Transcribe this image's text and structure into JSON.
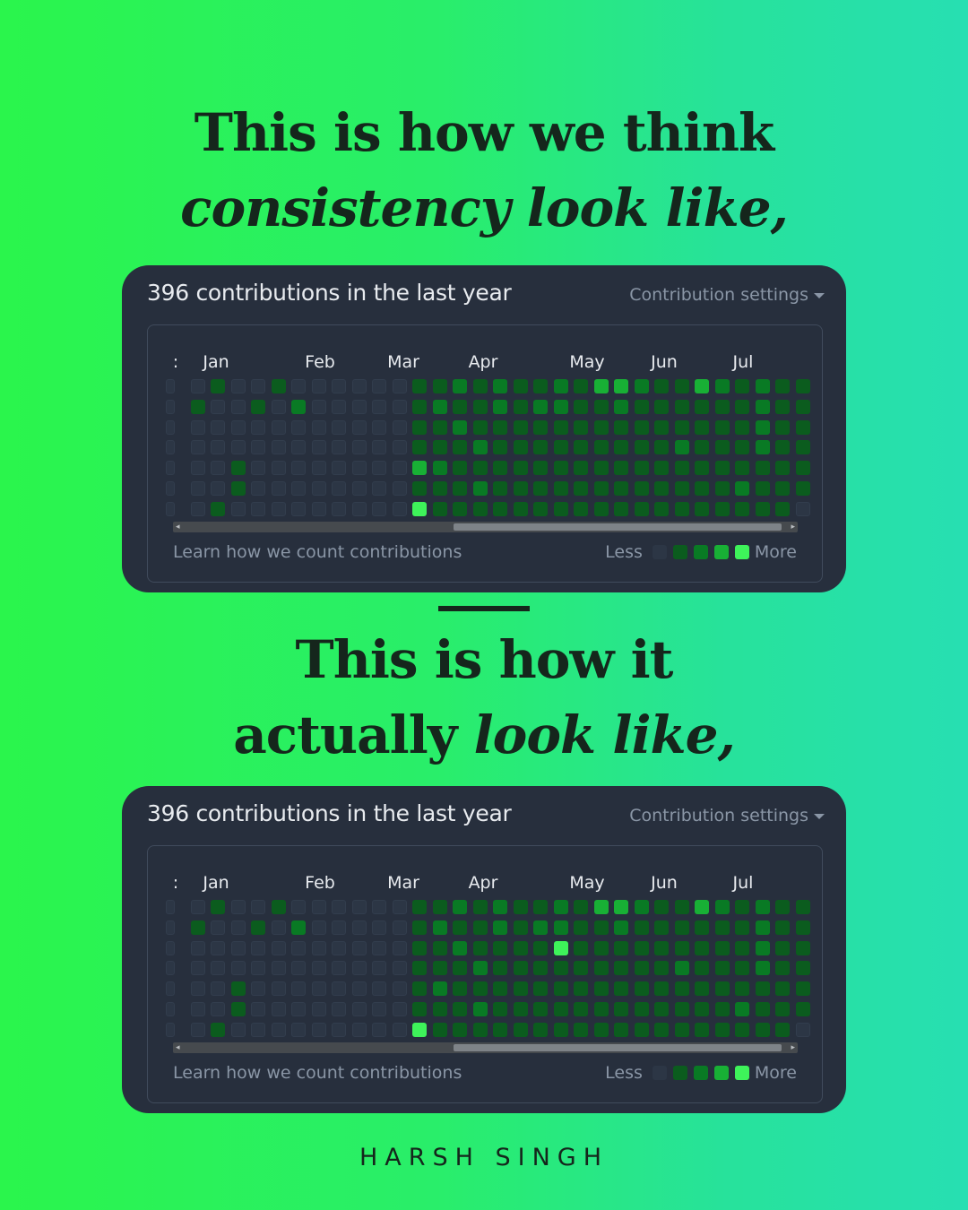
{
  "headline_top": {
    "line1": "This is how we think",
    "line2": "consistency look like,"
  },
  "headline_bottom": {
    "line1": "This is how it",
    "line2_plain": "actually ",
    "line2_italic": "look like,"
  },
  "author": "HARSH SINGH",
  "colors": {
    "level0": "#2c3645",
    "level1": "#0b5c1e",
    "level2": "#097a24",
    "level3": "#18b035",
    "level4": "#3ef35a",
    "card_bg": "#272f3d"
  },
  "cards": [
    {
      "title": "396 contributions in the last year",
      "settings_label": "Contribution settings",
      "settings_icon": "caret-down-icon",
      "months": [
        "Jan",
        "Feb",
        "Mar",
        "Apr",
        "May",
        "Jun",
        "Jul"
      ],
      "clipped_month_label": ":",
      "footer_link": "Learn how we count contributions",
      "legend_less": "Less",
      "legend_more": "More",
      "weeks": [
        "0000000",
        "0100000",
        "1000001",
        "0000110",
        "0100000",
        "1000000",
        "0200000",
        "0000000",
        "0000000",
        "0000000",
        "0000000",
        "0000000",
        "1111111",
        "1211211",
        "2121111",
        "1112121",
        "2211111",
        "1111111",
        "1211111",
        "2211111",
        "1111111",
        "3111111",
        "3211111",
        "2111111",
        "1111111",
        "1112111",
        "3111111",
        "2111111",
        "1111121",
        "2222111",
        "1111111",
        "1111110"
      ],
      "special_cells": [
        {
          "week": 12,
          "day": 6,
          "level": 4
        },
        {
          "week": 12,
          "day": 4,
          "level": 3
        }
      ]
    },
    {
      "title": "396 contributions in the last year",
      "settings_label": "Contribution settings",
      "settings_icon": "caret-down-icon",
      "months": [
        "Jan",
        "Feb",
        "Mar",
        "Apr",
        "May",
        "Jun",
        "Jul"
      ],
      "clipped_month_label": ":",
      "footer_link": "Learn how we count contributions",
      "legend_less": "Less",
      "legend_more": "More",
      "weeks": [
        "0000000",
        "0100000",
        "1000001",
        "0000110",
        "0100000",
        "1000000",
        "0200000",
        "0000000",
        "0000000",
        "0000000",
        "0000000",
        "0000000",
        "1111111",
        "1211211",
        "2121111",
        "1112121",
        "2211111",
        "1111111",
        "1211111",
        "2211111",
        "1111111",
        "3111111",
        "3211111",
        "2111111",
        "1111111",
        "1112111",
        "3111111",
        "2111111",
        "1111121",
        "2222111",
        "1111111",
        "1111110"
      ],
      "special_cells": [
        {
          "week": 12,
          "day": 6,
          "level": 4
        },
        {
          "week": 19,
          "day": 2,
          "level": 4
        }
      ]
    }
  ]
}
